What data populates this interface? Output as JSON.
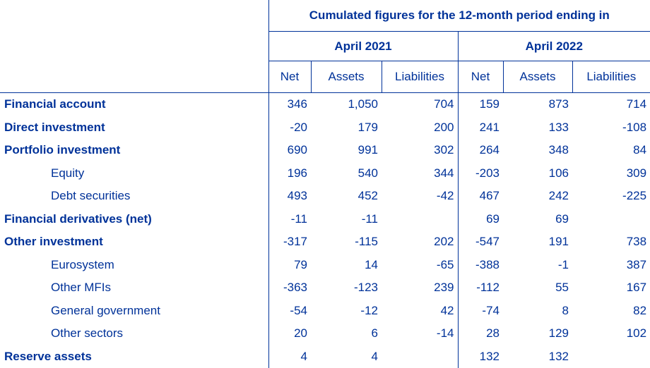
{
  "header": {
    "title": "Cumulated figures for the 12-month period ending in",
    "periods": [
      "April 2021",
      "April 2022"
    ],
    "columns": [
      "Net",
      "Assets",
      "Liabilities",
      "Net",
      "Assets",
      "Liabilities"
    ]
  },
  "rows": [
    {
      "label": "Financial account",
      "bold": true,
      "values": [
        "346",
        "1,050",
        "704",
        "159",
        "873",
        "714"
      ]
    },
    {
      "label": "Direct investment",
      "bold": true,
      "values": [
        "-20",
        "179",
        "200",
        "241",
        "133",
        "-108"
      ]
    },
    {
      "label": "Portfolio investment",
      "bold": true,
      "values": [
        "690",
        "991",
        "302",
        "264",
        "348",
        "84"
      ]
    },
    {
      "label": "Equity",
      "bold": false,
      "values": [
        "196",
        "540",
        "344",
        "-203",
        "106",
        "309"
      ]
    },
    {
      "label": "Debt securities",
      "bold": false,
      "values": [
        "493",
        "452",
        "-42",
        "467",
        "242",
        "-225"
      ]
    },
    {
      "label": "Financial derivatives (net)",
      "bold": true,
      "values": [
        "-11",
        "-11",
        "",
        "69",
        "69",
        ""
      ]
    },
    {
      "label": "Other investment",
      "bold": true,
      "values": [
        "-317",
        "-115",
        "202",
        "-547",
        "191",
        "738"
      ]
    },
    {
      "label": "Eurosystem",
      "bold": false,
      "values": [
        "79",
        "14",
        "-65",
        "-388",
        "-1",
        "387"
      ]
    },
    {
      "label": "Other MFIs",
      "bold": false,
      "values": [
        "-363",
        "-123",
        "239",
        "-112",
        "55",
        "167"
      ]
    },
    {
      "label": "General government",
      "bold": false,
      "values": [
        "-54",
        "-12",
        "42",
        "-74",
        "8",
        "82"
      ]
    },
    {
      "label": "Other sectors",
      "bold": false,
      "values": [
        "20",
        "6",
        "-14",
        "28",
        "129",
        "102"
      ]
    },
    {
      "label": "Reserve assets",
      "bold": true,
      "values": [
        "4",
        "4",
        "",
        "132",
        "132",
        ""
      ]
    }
  ]
}
